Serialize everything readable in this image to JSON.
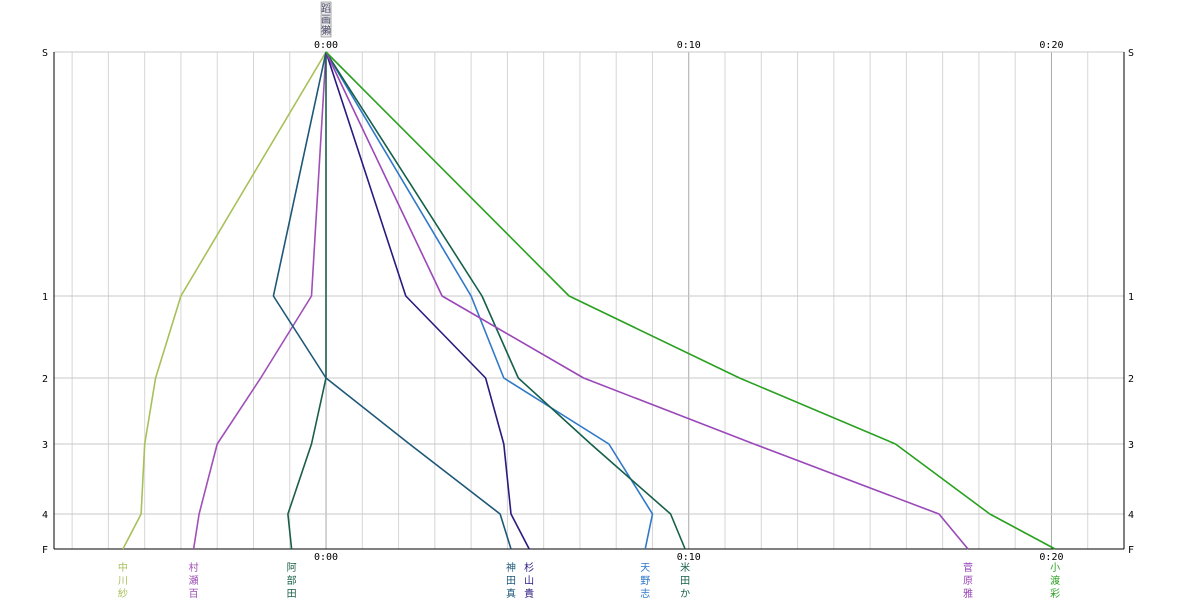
{
  "chart_data": {
    "type": "line",
    "x_unit": "minutes",
    "x_range": [
      -7.5,
      22
    ],
    "x_ticks": [
      {
        "value": 0,
        "label": "0:00"
      },
      {
        "value": 10,
        "label": "0:10"
      },
      {
        "value": 20,
        "label": "0:20"
      }
    ],
    "y_categories": [
      "S",
      "1",
      "2",
      "3",
      "4",
      "F"
    ],
    "grid": true,
    "top_marker_glyphs": [
      "蹈",
      "画",
      "獺"
    ],
    "series": [
      {
        "name": "中川紗",
        "name_chars": [
          "中",
          "川",
          "紗"
        ],
        "color": "#a8c05a",
        "values": [
          0,
          -4,
          -4.7,
          -5,
          -5.1,
          -5.6
        ]
      },
      {
        "name": "村瀬百",
        "name_chars": [
          "村",
          "瀬",
          "百"
        ],
        "color": "#a050b8",
        "values": [
          0,
          -0.4,
          -1.8,
          -3,
          -3.5,
          -3.65
        ]
      },
      {
        "name": "阿部田",
        "name_chars": [
          "阿",
          "部",
          "田"
        ],
        "color": "#1a5e4a",
        "values": [
          0,
          0,
          0,
          -0.4,
          -1.05,
          -0.95
        ]
      },
      {
        "name": "神田真",
        "name_chars": [
          "神",
          "田",
          "真"
        ],
        "color": "#1e5878",
        "values": [
          0,
          -1.45,
          0,
          2.3,
          4.8,
          5.1
        ]
      },
      {
        "name": "杉山貴",
        "name_chars": [
          "杉",
          "山",
          "貴"
        ],
        "color": "#2a1a80",
        "values": [
          0,
          2.2,
          4.4,
          4.9,
          5.1,
          5.6
        ]
      },
      {
        "name": "天野志",
        "name_chars": [
          "天",
          "野",
          "志"
        ],
        "color": "#3078c8",
        "values": [
          0,
          4.0,
          4.9,
          7.8,
          9.0,
          8.8
        ]
      },
      {
        "name": "米田か",
        "name_chars": [
          "米",
          "田",
          "か"
        ],
        "color": "#15604a",
        "values": [
          0,
          4.3,
          5.3,
          7.3,
          9.5,
          9.9
        ]
      },
      {
        "name": "菅原雅",
        "name_chars": [
          "菅",
          "原",
          "雅"
        ],
        "color": "#9a48b8",
        "values": [
          0,
          3.2,
          7.1,
          11.8,
          16.9,
          17.7
        ]
      },
      {
        "name": "小渡彩",
        "name_chars": [
          "小",
          "渡",
          "彩"
        ],
        "color": "#2aa020",
        "values": [
          0,
          6.7,
          11.4,
          15.7,
          18.3,
          20.1
        ]
      }
    ]
  }
}
